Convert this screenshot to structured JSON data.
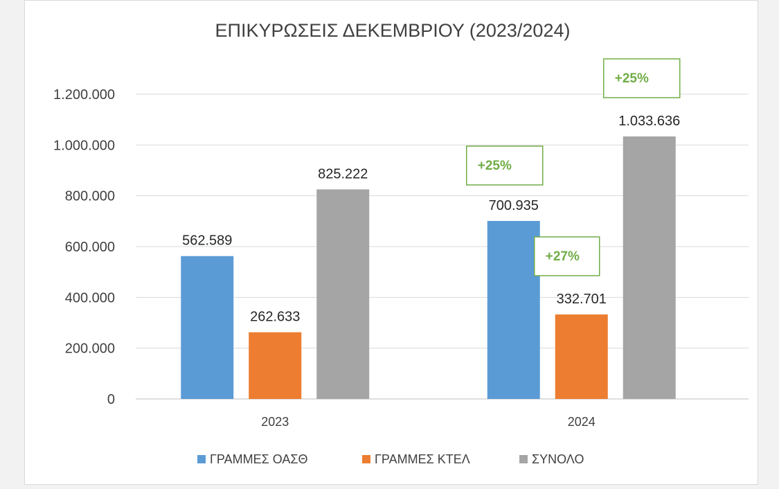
{
  "chart_data": {
    "type": "bar",
    "title": "ΕΠΙΚΥΡΩΣΕΙΣ ΔΕΚΕΜΒΡΙΟΥ (2023/2024)",
    "categories": [
      "2023",
      "2024"
    ],
    "series": [
      {
        "name": "ΓΡΑΜΜΕΣ ΟΑΣΘ",
        "color": "#5b9bd5",
        "values": [
          562589,
          700935
        ],
        "labels": [
          "562.589",
          "700.935"
        ]
      },
      {
        "name": "ΓΡΑΜΜΕΣ ΚΤΕΛ",
        "color": "#ed7d31",
        "values": [
          262633,
          332701
        ],
        "labels": [
          "262.633",
          "332.701"
        ]
      },
      {
        "name": "ΣΥΝΟΛΟ",
        "color": "#a5a5a5",
        "values": [
          825222,
          1033636
        ],
        "labels": [
          "825.222",
          "1.033.636"
        ]
      }
    ],
    "ylim": [
      0,
      1200000
    ],
    "yticks": [
      0,
      200000,
      400000,
      600000,
      800000,
      1000000,
      1200000
    ],
    "ytick_labels": [
      "0",
      "200.000",
      "400.000",
      "600.000",
      "800.000",
      "1.000.000",
      "1.200.000"
    ],
    "grid": true,
    "legend_position": "bottom",
    "annotations": [
      {
        "text": "+25%",
        "series": 0,
        "category": 1
      },
      {
        "text": "+27%",
        "series": 1,
        "category": 1
      },
      {
        "text": "+25%",
        "series": 2,
        "category": 1
      }
    ],
    "annotation_color": "#70ad47"
  }
}
